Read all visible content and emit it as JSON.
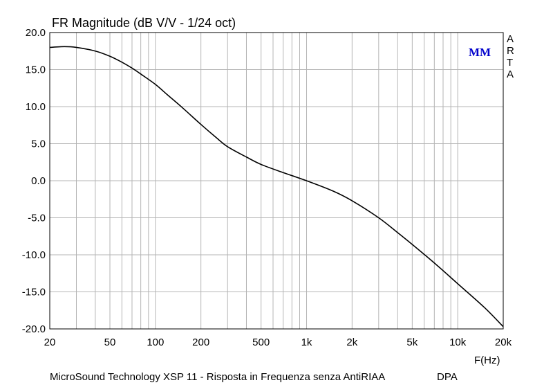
{
  "chart_data": {
    "type": "line",
    "title": "FR Magnitude (dB V/V - 1/24 oct)",
    "xlabel": "F(Hz)",
    "ylabel": "",
    "x_scale": "log",
    "xlim": [
      20,
      20000
    ],
    "ylim": [
      -20,
      20
    ],
    "grid": true,
    "x_ticks": [
      20,
      50,
      100,
      200,
      500,
      1000,
      2000,
      5000,
      10000,
      20000
    ],
    "x_tick_labels": [
      "20",
      "50",
      "100",
      "200",
      "500",
      "1k",
      "2k",
      "5k",
      "10k",
      "20k"
    ],
    "y_ticks": [
      -20,
      -15,
      -10,
      -5,
      0,
      5,
      10,
      15,
      20
    ],
    "y_tick_labels": [
      "-20.0",
      "-15.0",
      "-10.0",
      "-5.0",
      "0.0",
      "5.0",
      "10.0",
      "15.0",
      "20.0"
    ],
    "series": [
      {
        "color": "#000000",
        "x": [
          20,
          25,
          30,
          40,
          50,
          60,
          70,
          80,
          100,
          120,
          150,
          200,
          250,
          300,
          400,
          500,
          700,
          1000,
          1500,
          2000,
          3000,
          4000,
          5000,
          7000,
          10000,
          15000,
          20000
        ],
        "y": [
          18.0,
          18.1,
          18.0,
          17.5,
          16.8,
          16.0,
          15.2,
          14.4,
          13.0,
          11.6,
          9.9,
          7.6,
          5.9,
          4.6,
          3.2,
          2.2,
          1.1,
          0.0,
          -1.4,
          -2.7,
          -5.0,
          -7.0,
          -8.6,
          -11.1,
          -13.9,
          -17.1,
          -19.7
        ]
      }
    ]
  },
  "labels": {
    "title": "FR Magnitude (dB V/V - 1/24 oct)",
    "badge": "MM",
    "arta": [
      "A",
      "R",
      "T",
      "A"
    ],
    "xaxis_unit": "F(Hz)",
    "caption": "MicroSound Technology XSP 11 - Risposta in Frequenza senza AntiRIAA",
    "caption_tag": "DPA"
  },
  "colors": {
    "grid": "#b4b4b4",
    "frame": "#000000",
    "curve": "#000000",
    "badge": "#0000cc"
  }
}
